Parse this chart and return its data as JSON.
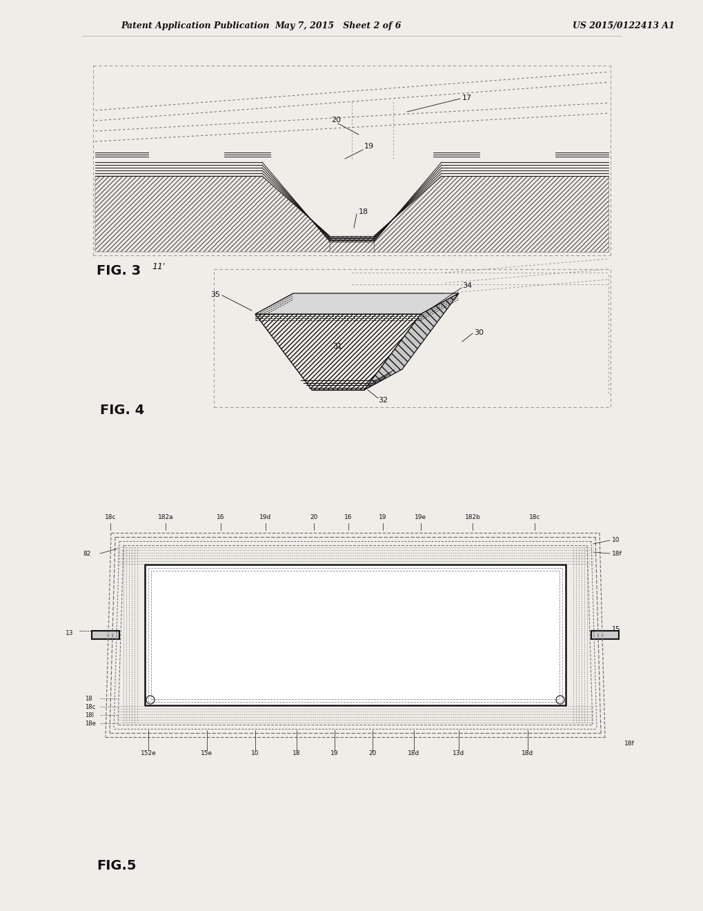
{
  "bg_color": "#f0ede8",
  "header_left": "Patent Application Publication",
  "header_mid": "May 7, 2015   Sheet 2 of 6",
  "header_right": "US 2015/0122413 A1",
  "fig3_label": "FIG. 3",
  "fig3_ref": "11'",
  "fig4_label": "FIG. 4",
  "fig5_label": "FIG.5",
  "line_color": "#111111",
  "gray": "#888888"
}
